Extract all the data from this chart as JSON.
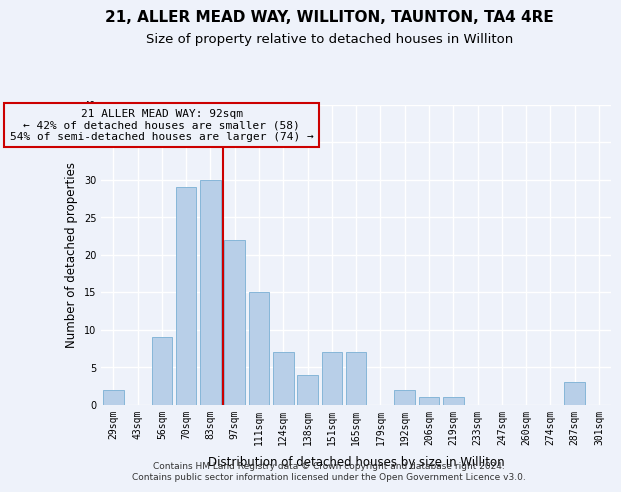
{
  "title": "21, ALLER MEAD WAY, WILLITON, TAUNTON, TA4 4RE",
  "subtitle": "Size of property relative to detached houses in Williton",
  "xlabel": "Distribution of detached houses by size in Williton",
  "ylabel": "Number of detached properties",
  "categories": [
    "29sqm",
    "43sqm",
    "56sqm",
    "70sqm",
    "83sqm",
    "97sqm",
    "111sqm",
    "124sqm",
    "138sqm",
    "151sqm",
    "165sqm",
    "179sqm",
    "192sqm",
    "206sqm",
    "219sqm",
    "233sqm",
    "247sqm",
    "260sqm",
    "274sqm",
    "287sqm",
    "301sqm"
  ],
  "values": [
    2,
    0,
    9,
    29,
    30,
    22,
    15,
    7,
    4,
    7,
    7,
    0,
    2,
    1,
    1,
    0,
    0,
    0,
    0,
    3,
    0
  ],
  "bar_color": "#b8cfe8",
  "bar_edgecolor": "#7aafd4",
  "vline_x_index": 4.5,
  "vline_color": "#cc0000",
  "annotation_text": "21 ALLER MEAD WAY: 92sqm\n← 42% of detached houses are smaller (58)\n54% of semi-detached houses are larger (74) →",
  "annotation_box_edgecolor": "#cc0000",
  "ylim": [
    0,
    40
  ],
  "yticks": [
    0,
    5,
    10,
    15,
    20,
    25,
    30,
    35,
    40
  ],
  "footer": "Contains HM Land Registry data © Crown copyright and database right 2024.\nContains public sector information licensed under the Open Government Licence v3.0.",
  "background_color": "#eef2fa",
  "grid_color": "#ffffff",
  "title_fontsize": 11,
  "subtitle_fontsize": 9.5,
  "axis_label_fontsize": 8.5,
  "tick_fontsize": 7,
  "annotation_fontsize": 8,
  "footer_fontsize": 6.5
}
